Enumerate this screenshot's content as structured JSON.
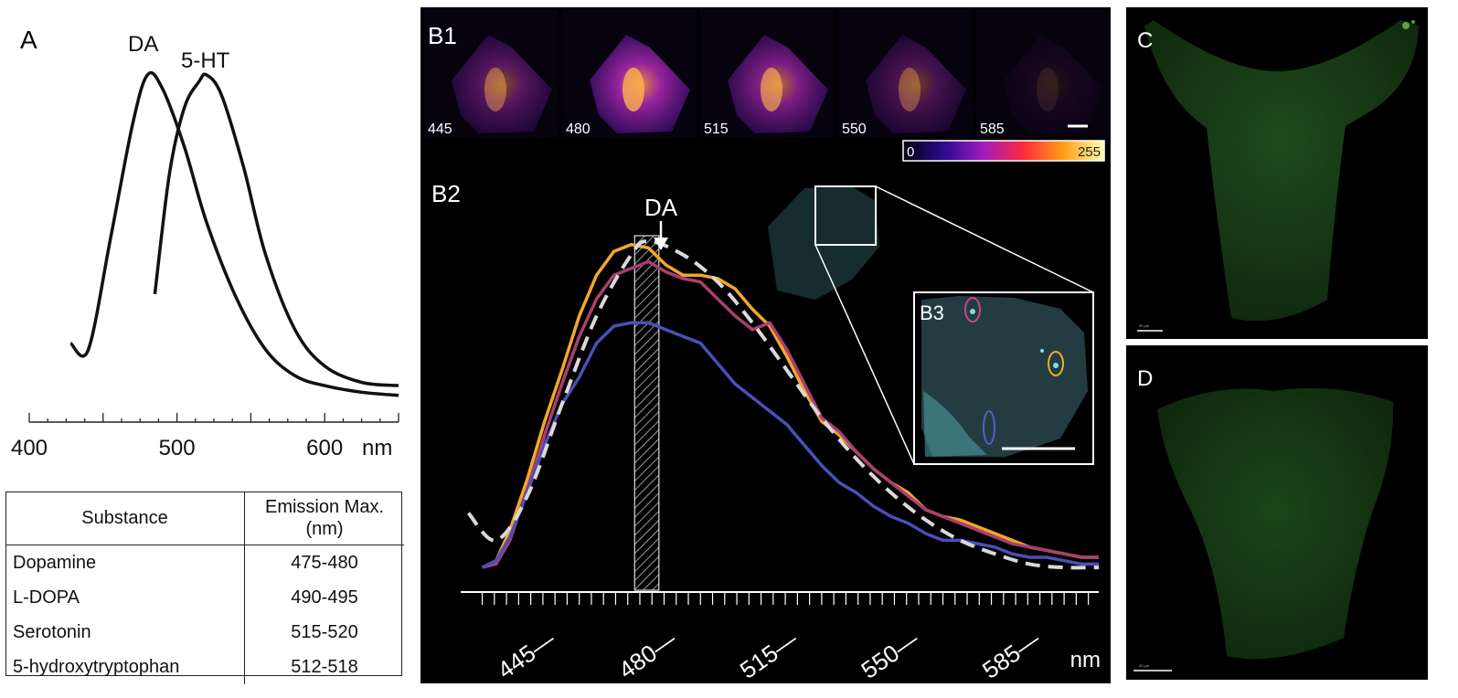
{
  "panelA": {
    "letter": "A",
    "curve_labels": {
      "da": "DA",
      "ht": "5-HT"
    },
    "axis_ticks": [
      "400",
      "500",
      "600"
    ],
    "axis_unit": "nm",
    "table": {
      "headers": [
        "Substance",
        "Emission Max.\n(nm)"
      ],
      "rows": [
        {
          "substance": "Dopamine",
          "emission": "475-480"
        },
        {
          "substance": "L-DOPA",
          "emission": "490-495"
        },
        {
          "substance": "Serotonin",
          "emission": "515-520"
        },
        {
          "substance": "5-hydroxytryptophan",
          "emission": "512-518"
        }
      ]
    }
  },
  "panelB": {
    "b1_letter": "B1",
    "b2_letter": "B2",
    "b3_letter": "B3",
    "thumb_labels": [
      "445",
      "480",
      "515",
      "550",
      "585"
    ],
    "colorbar_min": "0",
    "colorbar_max": "255",
    "da_marker": "DA",
    "x_unit": "nm"
  },
  "panelC": {
    "letter": "C",
    "scale_text": "20 µm"
  },
  "panelD": {
    "letter": "D",
    "scale_text": "20 µm"
  },
  "chart_data": [
    {
      "type": "line",
      "title": "",
      "xlabel": "nm",
      "ylabel": "",
      "xlim": [
        400,
        650
      ],
      "x_ticks": [
        400,
        500,
        600
      ],
      "series": [
        {
          "name": "DA",
          "x": [
            428,
            440,
            455,
            470,
            480,
            490,
            505,
            520,
            540,
            560,
            580,
            600,
            625,
            650
          ],
          "values": [
            0.18,
            0.16,
            0.5,
            0.85,
            1.0,
            0.96,
            0.78,
            0.55,
            0.32,
            0.16,
            0.08,
            0.05,
            0.03,
            0.02
          ]
        },
        {
          "name": "5-HT",
          "x": [
            485,
            495,
            505,
            515,
            520,
            530,
            545,
            560,
            580,
            600,
            625,
            650
          ],
          "values": [
            0.33,
            0.7,
            0.9,
            0.98,
            1.0,
            0.94,
            0.72,
            0.45,
            0.22,
            0.11,
            0.06,
            0.05
          ]
        }
      ]
    },
    {
      "type": "line",
      "title": "",
      "xlabel": "nm",
      "ylabel": "",
      "xlim": [
        430,
        610
      ],
      "x_ticks": [
        445,
        480,
        515,
        550,
        585
      ],
      "highlight_band": [
        476,
        483
      ],
      "series": [
        {
          "name": "DA reference (dashed)",
          "x": [
            428,
            436,
            445,
            455,
            465,
            475,
            480,
            490,
            500,
            510,
            520,
            530,
            540,
            550,
            560,
            570,
            580,
            590,
            600,
            610
          ],
          "values": [
            0.2,
            0.12,
            0.25,
            0.52,
            0.78,
            0.96,
            1.0,
            0.96,
            0.88,
            0.76,
            0.62,
            0.48,
            0.36,
            0.26,
            0.18,
            0.12,
            0.08,
            0.05,
            0.04,
            0.04
          ]
        },
        {
          "name": "orange ROI",
          "x": [
            432,
            436,
            440,
            445,
            450,
            455,
            460,
            465,
            470,
            475,
            480,
            485,
            490,
            495,
            500,
            505,
            510,
            515,
            520,
            525,
            530,
            535,
            540,
            545,
            550,
            555,
            560,
            565,
            570,
            575,
            580,
            585,
            590,
            595,
            600,
            605,
            610
          ],
          "values": [
            0.04,
            0.06,
            0.15,
            0.3,
            0.47,
            0.62,
            0.78,
            0.9,
            0.97,
            0.99,
            0.98,
            0.93,
            0.9,
            0.9,
            0.89,
            0.86,
            0.8,
            0.75,
            0.66,
            0.56,
            0.47,
            0.43,
            0.38,
            0.33,
            0.29,
            0.26,
            0.21,
            0.19,
            0.18,
            0.16,
            0.14,
            0.12,
            0.1,
            0.09,
            0.08,
            0.07,
            0.07
          ]
        },
        {
          "name": "magenta ROI",
          "x": [
            432,
            436,
            440,
            445,
            450,
            455,
            460,
            465,
            470,
            475,
            480,
            485,
            490,
            495,
            500,
            505,
            510,
            515,
            520,
            525,
            530,
            535,
            540,
            545,
            550,
            555,
            560,
            565,
            570,
            575,
            580,
            585,
            590,
            595,
            600,
            605,
            610
          ],
          "values": [
            0.04,
            0.05,
            0.12,
            0.27,
            0.43,
            0.58,
            0.72,
            0.83,
            0.9,
            0.92,
            0.94,
            0.91,
            0.89,
            0.88,
            0.83,
            0.78,
            0.74,
            0.76,
            0.68,
            0.58,
            0.48,
            0.44,
            0.38,
            0.33,
            0.29,
            0.25,
            0.21,
            0.19,
            0.17,
            0.15,
            0.13,
            0.11,
            0.1,
            0.09,
            0.08,
            0.07,
            0.07
          ]
        },
        {
          "name": "blue ROI",
          "x": [
            432,
            436,
            440,
            445,
            450,
            455,
            460,
            465,
            470,
            475,
            480,
            485,
            490,
            495,
            500,
            505,
            510,
            515,
            520,
            525,
            530,
            535,
            540,
            545,
            550,
            555,
            560,
            565,
            570,
            575,
            580,
            585,
            590,
            595,
            600,
            605,
            610
          ],
          "values": [
            0.04,
            0.06,
            0.13,
            0.26,
            0.4,
            0.52,
            0.6,
            0.7,
            0.75,
            0.76,
            0.76,
            0.74,
            0.72,
            0.7,
            0.64,
            0.58,
            0.54,
            0.5,
            0.46,
            0.4,
            0.34,
            0.29,
            0.26,
            0.22,
            0.19,
            0.17,
            0.14,
            0.12,
            0.12,
            0.11,
            0.1,
            0.08,
            0.07,
            0.07,
            0.06,
            0.05,
            0.05
          ]
        }
      ]
    }
  ]
}
